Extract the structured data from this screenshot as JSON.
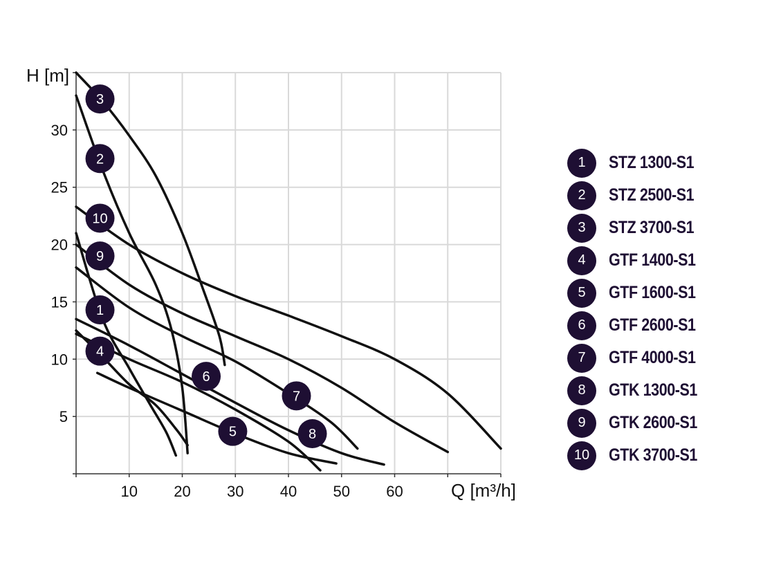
{
  "chart_data": {
    "type": "line",
    "title": "",
    "xlabel": "Q [m³/h]",
    "ylabel": "H [m]",
    "xlim": [
      0,
      80
    ],
    "ylim": [
      0,
      35
    ],
    "x_ticks": [
      10,
      20,
      30,
      40,
      50,
      60
    ],
    "y_ticks": [
      5,
      10,
      15,
      20,
      25,
      30
    ],
    "grid": true,
    "legend_position": "right",
    "colors": {
      "line": "#111111",
      "badge": "#1e0f33",
      "grid": "#d9d9d9",
      "axis": "#333333"
    },
    "series": [
      {
        "name": "STZ 1300-S1",
        "number": "1",
        "label_at": [
          4.5,
          14.3
        ],
        "points": [
          [
            0,
            21
          ],
          [
            5,
            13.5
          ],
          [
            10,
            9.2
          ],
          [
            14,
            6.0
          ],
          [
            17,
            3.6
          ],
          [
            18.8,
            1.6
          ]
        ]
      },
      {
        "name": "STZ 2500-S1",
        "number": "2",
        "label_at": [
          4.5,
          27.5
        ],
        "points": [
          [
            0,
            33
          ],
          [
            5,
            26.5
          ],
          [
            10,
            21
          ],
          [
            15,
            16.5
          ],
          [
            18,
            12.5
          ],
          [
            20,
            7.5
          ],
          [
            21,
            1.8
          ]
        ]
      },
      {
        "name": "STZ 3700-S1",
        "number": "3",
        "label_at": [
          4.5,
          32.7
        ],
        "points": [
          [
            0,
            35
          ],
          [
            5,
            32.5
          ],
          [
            10,
            29.5
          ],
          [
            15,
            26
          ],
          [
            20,
            21
          ],
          [
            24,
            16
          ],
          [
            27,
            12
          ],
          [
            28,
            9.5
          ]
        ]
      },
      {
        "name": "GTF 1400-S1",
        "number": "4",
        "label_at": [
          4.5,
          10.7
        ],
        "points": [
          [
            0,
            12.5
          ],
          [
            5,
            10.2
          ],
          [
            10,
            7.8
          ],
          [
            15,
            6.0
          ],
          [
            19,
            3.8
          ],
          [
            21,
            2.5
          ]
        ]
      },
      {
        "name": "GTF 1600-S1",
        "number": "5",
        "label_at": [
          29.5,
          3.7
        ],
        "points": [
          [
            4,
            8.8
          ],
          [
            10,
            7.5
          ],
          [
            20,
            5.5
          ],
          [
            30,
            3.5
          ],
          [
            40,
            1.8
          ],
          [
            49,
            0.9
          ]
        ]
      },
      {
        "name": "GTF 2600-S1",
        "number": "6",
        "label_at": [
          24.5,
          8.5
        ],
        "points": [
          [
            0,
            12.2
          ],
          [
            10,
            10.0
          ],
          [
            20,
            8.0
          ],
          [
            30,
            5.6
          ],
          [
            40,
            2.8
          ],
          [
            46,
            0.3
          ]
        ]
      },
      {
        "name": "GTF 4000-S1",
        "number": "7",
        "label_at": [
          41.5,
          6.8
        ],
        "points": [
          [
            0,
            18.0
          ],
          [
            10,
            14.5
          ],
          [
            20,
            12.0
          ],
          [
            30,
            9.8
          ],
          [
            40,
            7.0
          ],
          [
            48,
            4.5
          ],
          [
            53,
            2.2
          ]
        ]
      },
      {
        "name": "GTK 1300-S1",
        "number": "8",
        "label_at": [
          44.5,
          3.5
        ],
        "points": [
          [
            0,
            13.5
          ],
          [
            10,
            11.2
          ],
          [
            20,
            8.7
          ],
          [
            30,
            6.2
          ],
          [
            40,
            3.8
          ],
          [
            50,
            1.8
          ],
          [
            58,
            0.8
          ]
        ]
      },
      {
        "name": "GTK 2600-S1",
        "number": "9",
        "label_at": [
          4.5,
          19.0
        ],
        "points": [
          [
            0,
            20.0
          ],
          [
            10,
            16.5
          ],
          [
            20,
            14.0
          ],
          [
            30,
            12.0
          ],
          [
            40,
            10.0
          ],
          [
            50,
            7.5
          ],
          [
            60,
            4.5
          ],
          [
            70,
            1.9
          ]
        ]
      },
      {
        "name": "GTK 3700-S1",
        "number": "10",
        "label_at": [
          4.5,
          22.3
        ],
        "points": [
          [
            0,
            23.3
          ],
          [
            10,
            20.0
          ],
          [
            20,
            17.5
          ],
          [
            30,
            15.5
          ],
          [
            40,
            13.8
          ],
          [
            50,
            12.0
          ],
          [
            60,
            10.0
          ],
          [
            70,
            7.0
          ],
          [
            80,
            2.2
          ]
        ]
      }
    ]
  }
}
